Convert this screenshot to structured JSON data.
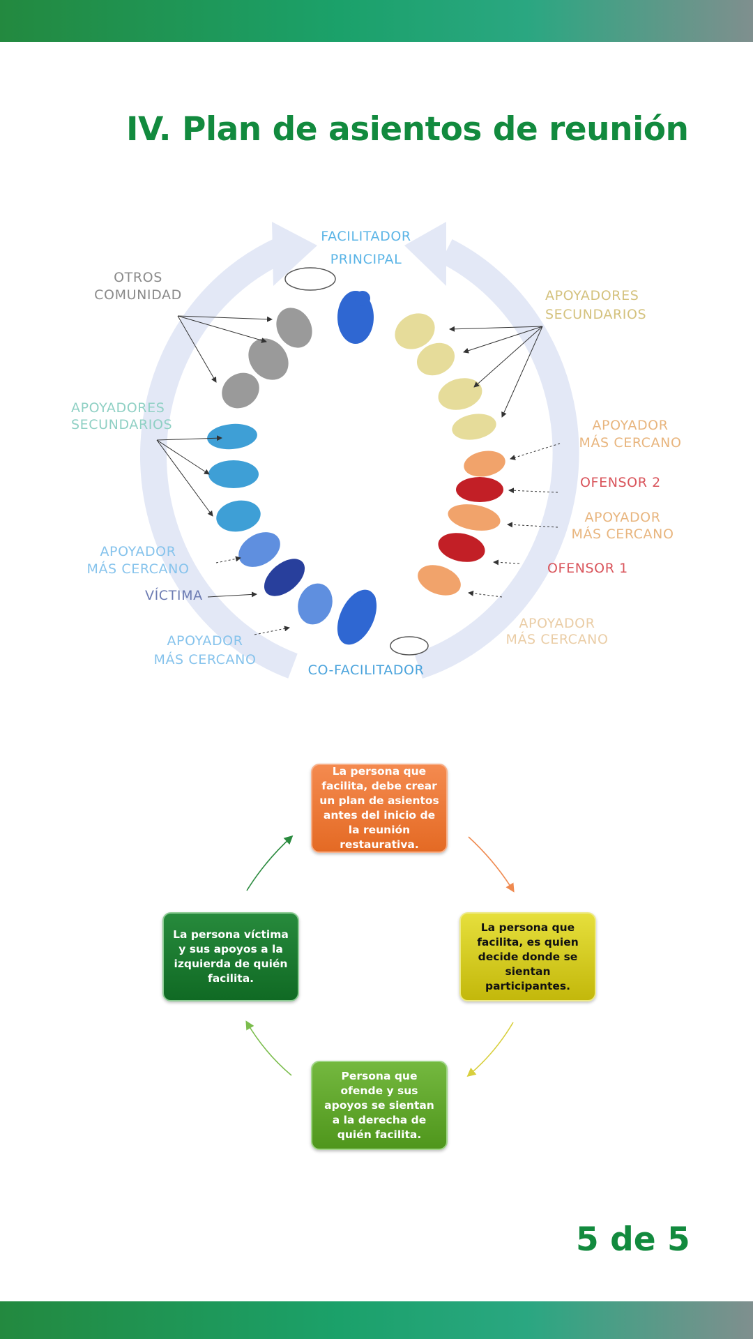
{
  "header_band": "top-band",
  "title": "IV. Plan de asientos de reunión",
  "diagram": {
    "labels": {
      "facilitador_l1": "FACILITADOR",
      "facilitador_l2": "PRINCIPAL",
      "otros_l1": "OTROS",
      "otros_l2": "COMUNIDAD",
      "apoy_sec_right_l1": "APOYADORES",
      "apoy_sec_right_l2": "SECUNDARIOS",
      "apoy_sec_left_l1": "APOYADORES",
      "apoy_sec_left_l2": "SECUNDARIOS",
      "apoyador_mc1_l1": "APOYADOR",
      "apoyador_mc1_l2": "MÁS CERCANO",
      "ofensor2": "OFENSOR 2",
      "apoyador_mc2_l1": "APOYADOR",
      "apoyador_mc2_l2": "MÁS CERCANO",
      "ofensor1": "OFENSOR 1",
      "apoyador_mc3_l1": "APOYADOR",
      "apoyador_mc3_l2": "MÁS CERCANO",
      "apoyador_left1_l1": "APOYADOR",
      "apoyador_left1_l2": "MÁS CERCANO",
      "victima": "VÍCTIMA",
      "apoyador_left2_l1": "APOYADOR",
      "apoyador_left2_l2": "MÁS CERCANO",
      "cofacilitador": "CO-FACILITADOR"
    },
    "colors": {
      "facilitator": "#2f67d2",
      "community": "#9a9a9a",
      "secondary_right": "#e6dc9a",
      "closest_right": "#f1a36b",
      "offender": "#c21f26",
      "secondary_left": "#3e9fd6",
      "victim": "#283f9c"
    }
  },
  "cycle": {
    "step1": "La persona que facilita, debe crear un plan de asientos antes del inicio de la reunión restaurativa.",
    "step2": "La persona que facilita, es quien decide donde se sientan participantes.",
    "step3": "Persona que ofende y sus apoyos se sientan a la derecha de quién facilita.",
    "step4": "La persona víctima y sus apoyos a la izquierda de quién facilita."
  },
  "page_number": "5 de 5"
}
